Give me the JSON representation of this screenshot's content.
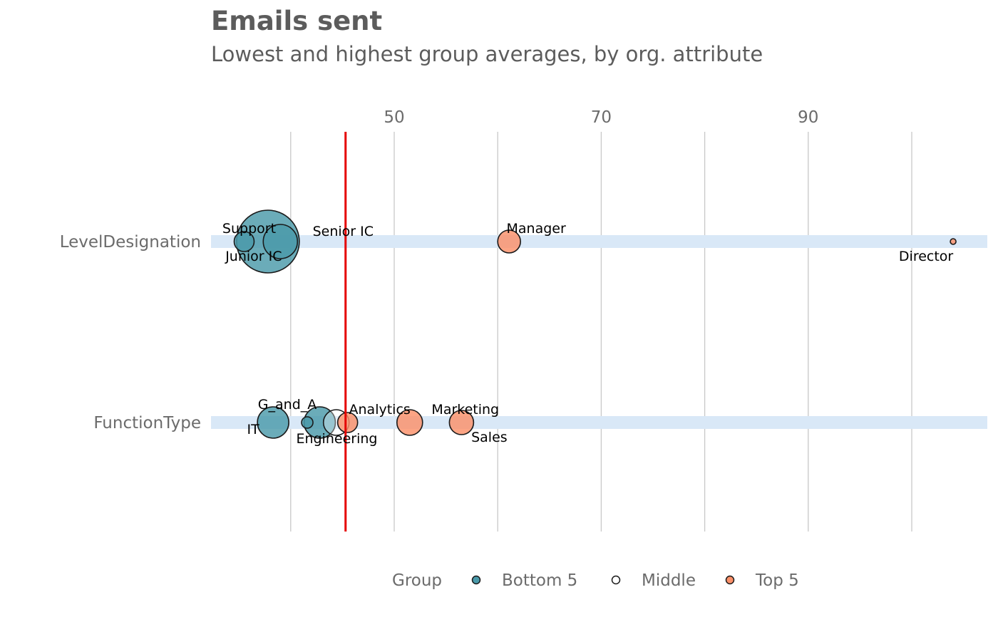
{
  "chart_data": {
    "type": "scatter",
    "title": "Emails sent",
    "subtitle": "Lowest and highest group averages, by org. attribute",
    "xlabel": "",
    "ylabel": "",
    "xlim": [
      32.3,
      107.3
    ],
    "x_ticks": [
      50,
      70,
      90
    ],
    "gridlines_at": [
      40,
      50,
      60,
      70,
      80,
      90,
      100
    ],
    "grid": true,
    "reference_line": {
      "x": 45.3,
      "color": "#e50000"
    },
    "categories": [
      "LevelDesignation",
      "FunctionType"
    ],
    "colors": {
      "Bottom 5": "#4a9aaa",
      "Middle": "#ffffff",
      "Top 5": "#fb9069",
      "band": "#d9e8f7"
    },
    "points": [
      {
        "attribute": "LevelDesignation",
        "label": "Support",
        "x": 35.5,
        "size": 14,
        "group": "Bottom 5"
      },
      {
        "attribute": "LevelDesignation",
        "label": "Junior IC",
        "x": 37.8,
        "size": 44,
        "group": "Bottom 5"
      },
      {
        "attribute": "LevelDesignation",
        "label": "Senior IC",
        "x": 39.0,
        "size": 24,
        "group": "Bottom 5"
      },
      {
        "attribute": "LevelDesignation",
        "label": "Manager",
        "x": 61.1,
        "size": 16,
        "group": "Top 5"
      },
      {
        "attribute": "LevelDesignation",
        "label": "Director",
        "x": 104.0,
        "size": 4,
        "group": "Top 5"
      },
      {
        "attribute": "FunctionType",
        "label": "IT",
        "x": 38.3,
        "size": 22,
        "group": "Bottom 5"
      },
      {
        "attribute": "FunctionType",
        "label": "G_and_A",
        "x": 41.6,
        "size": 8,
        "group": "Bottom 5"
      },
      {
        "attribute": "FunctionType",
        "label": "Engineering",
        "x": 42.8,
        "size": 22,
        "group": "Bottom 5"
      },
      {
        "attribute": "FunctionType",
        "label": "",
        "x": 44.4,
        "size": 18,
        "group": "Middle"
      },
      {
        "attribute": "FunctionType",
        "label": "Analytics",
        "x": 45.5,
        "size": 14,
        "group": "Top 5"
      },
      {
        "attribute": "FunctionType",
        "label": "Marketing",
        "x": 51.5,
        "size": 18,
        "group": "Top 5"
      },
      {
        "attribute": "FunctionType",
        "label": "Sales",
        "x": 56.5,
        "size": 17,
        "group": "Top 5"
      }
    ],
    "legend": {
      "title": "Group",
      "position": "bottom",
      "items": [
        {
          "name": "Bottom 5",
          "color": "#4a9aaa"
        },
        {
          "name": "Middle",
          "color": "#ffffff"
        },
        {
          "name": "Top 5",
          "color": "#fb9069"
        }
      ]
    }
  }
}
